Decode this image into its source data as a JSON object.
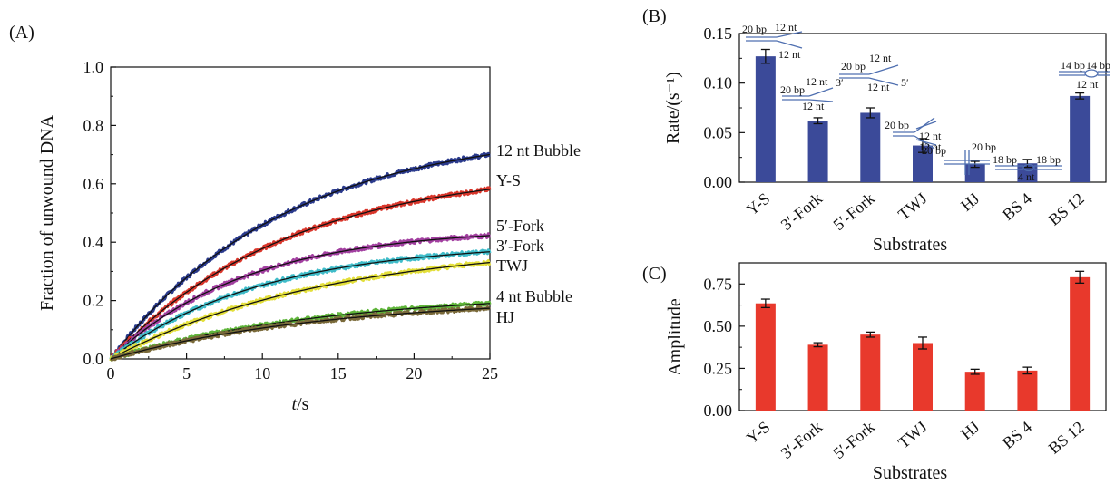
{
  "chart_data": [
    {
      "panel": "(A)",
      "type": "line",
      "xlabel_italic": "t",
      "xlabel_unit": "/s",
      "ylabel": "Fraction of unwound DNA",
      "xlim": [
        0,
        25
      ],
      "ylim": [
        0,
        1.0
      ],
      "xticks": [
        "0",
        "5",
        "10",
        "15",
        "20",
        "25"
      ],
      "yticks": [
        "0.0",
        "0.2",
        "0.4",
        "0.6",
        "0.8",
        "1.0"
      ],
      "legend_placement": "curve labels at right end",
      "series": [
        {
          "name": "12 nt Bubble",
          "color": "#2a3a8c",
          "amplitude": 0.79,
          "rate": 0.087,
          "end_value": 0.7
        },
        {
          "name": "Y-S",
          "color": "#d9362b",
          "amplitude": 0.66,
          "rate": 0.085,
          "end_value": 0.59
        },
        {
          "name": "5′-Fork",
          "color": "#a23fa0",
          "amplitude": 0.45,
          "rate": 0.112,
          "end_value": 0.42
        },
        {
          "name": "3′-Fork",
          "color": "#3fbcc9",
          "amplitude": 0.4,
          "rate": 0.1,
          "end_value": 0.37
        },
        {
          "name": "TWJ",
          "color": "#e3df3a",
          "amplitude": 0.4,
          "rate": 0.07,
          "end_value": 0.33
        },
        {
          "name": "4 nt Bubble",
          "color": "#5fb53a",
          "amplitude": 0.23,
          "rate": 0.07,
          "end_value": 0.19
        },
        {
          "name": "HJ",
          "color": "#7a6a3a",
          "amplitude": 0.21,
          "rate": 0.07,
          "end_value": 0.17
        }
      ]
    },
    {
      "panel": "(B)",
      "type": "bar",
      "xlabel": "Substrates",
      "ylabel": "Rate/(s⁻¹)",
      "ylim": [
        0,
        0.15
      ],
      "yticks": [
        "0.00",
        "0.05",
        "0.10",
        "0.15"
      ],
      "color": "#3b4a99",
      "categories": [
        "Y-S",
        "3′-Fork",
        "5′-Fork",
        "TWJ",
        "HJ",
        "BS 4",
        "BS 12"
      ],
      "values": [
        0.127,
        0.062,
        0.07,
        0.037,
        0.018,
        0.019,
        0.087
      ],
      "errors": [
        0.007,
        0.003,
        0.005,
        0.007,
        0.003,
        0.004,
        0.003
      ],
      "annotations": {
        "ys": [
          "20 bp",
          "12 nt",
          "12 nt"
        ],
        "fork3": [
          "20 bp",
          "12 nt",
          "3′",
          "12 nt"
        ],
        "fork5": [
          "20 bp",
          "12 nt",
          "12 nt",
          "5′"
        ],
        "twj": [
          "20 bp",
          "12 nt",
          "12 nt"
        ],
        "hj": [
          "20 bp",
          "20 bp"
        ],
        "bs4": [
          "18 bp",
          "18 bp",
          "4 nt"
        ],
        "bs12": [
          "14 bp",
          "14 bp",
          "12 nt"
        ]
      }
    },
    {
      "panel": "(C)",
      "type": "bar",
      "xlabel": "Substrates",
      "ylabel": "Amplitude",
      "ylim": [
        0,
        0.875
      ],
      "yticks": [
        "0.00",
        "0.25",
        "0.50",
        "0.75"
      ],
      "color": "#e8392c",
      "categories": [
        "Y-S",
        "3′-Fork",
        "5′-Fork",
        "TWJ",
        "HJ",
        "BS 4",
        "BS 12"
      ],
      "values": [
        0.635,
        0.39,
        0.45,
        0.4,
        0.23,
        0.237,
        0.79
      ],
      "errors": [
        0.025,
        0.012,
        0.015,
        0.035,
        0.015,
        0.02,
        0.035
      ]
    }
  ]
}
